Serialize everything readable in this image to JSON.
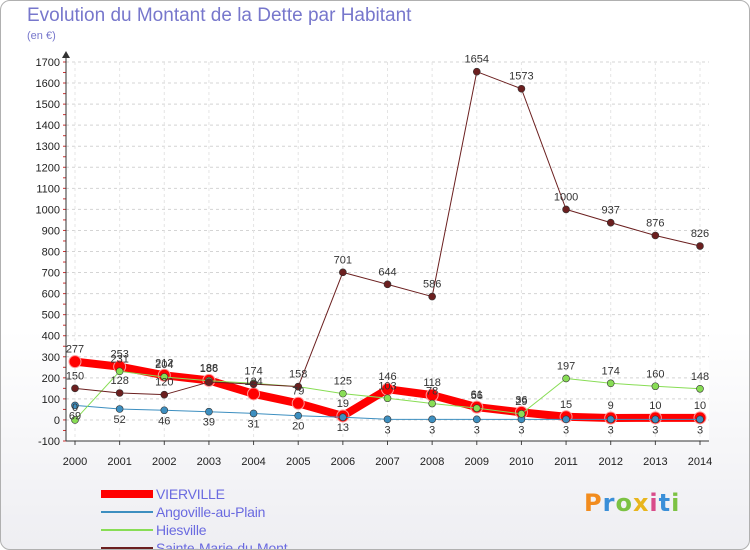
{
  "header": {
    "title": "Evolution du Montant de la Dette par Habitant",
    "unit": "(en €)"
  },
  "brand": {
    "logo": "Proxiti",
    "logo_colors": [
      "#f28c1e",
      "#3a8fd8",
      "#7cc243",
      "#e8b51d",
      "#d94c8a",
      "#3a8fd8",
      "#7cc243"
    ]
  },
  "chart_data": {
    "type": "line",
    "title": "Evolution du Montant de la Dette par Habitant",
    "ylabel": "(en €)",
    "xlabel": "",
    "x": [
      "2000",
      "2001",
      "2002",
      "2003",
      "2004",
      "2005",
      "2006",
      "2007",
      "2008",
      "2009",
      "2010",
      "2011",
      "2012",
      "2013",
      "2014"
    ],
    "ylim": [
      -100,
      1700
    ],
    "yticks": [
      -100,
      0,
      100,
      200,
      300,
      400,
      500,
      600,
      700,
      800,
      900,
      1000,
      1100,
      1200,
      1300,
      1400,
      1500,
      1600,
      1700
    ],
    "grid": true,
    "legend_position": "bottom-left",
    "series": [
      {
        "name": "VIERVILLE",
        "color": "#ff0000",
        "width": 8,
        "values": [
          277,
          253,
          212,
          188,
          124,
          79,
          19,
          146,
          118,
          61,
          36,
          15,
          9,
          10,
          10
        ],
        "labels": [
          "277",
          "253",
          "212",
          "188",
          "124",
          "79",
          "19",
          "146",
          "118",
          "61",
          "36",
          "15",
          "9",
          "10",
          "10"
        ]
      },
      {
        "name": "Angoville-au-Plain",
        "color": "#3d8fc0",
        "width": 1,
        "values": [
          69,
          52,
          46,
          39,
          31,
          20,
          13,
          3,
          3,
          3,
          3,
          3,
          3,
          3,
          3
        ],
        "labels": [
          "69",
          "52",
          "46",
          "39",
          "31",
          "20",
          "13",
          "3",
          "3",
          "3",
          "3",
          "3",
          "3",
          "3",
          "3"
        ]
      },
      {
        "name": "Hiesville",
        "color": "#88dd55",
        "width": 1,
        "values": [
          0,
          231,
          204,
          186,
          174,
          158,
          125,
          103,
          78,
          56,
          29,
          197,
          174,
          160,
          148
        ],
        "labels": [
          "0",
          "231",
          "204",
          "186",
          "174",
          "158",
          "125",
          "103",
          "78",
          "56",
          "29",
          "197",
          "174",
          "160",
          "148"
        ]
      },
      {
        "name": "Sainte-Marie-du-Mont",
        "color": "#6b1f1f",
        "width": 1,
        "values": [
          150,
          128,
          120,
          180,
          170,
          158,
          701,
          644,
          586,
          1654,
          1573,
          1000,
          937,
          876,
          826
        ],
        "labels": [
          "150",
          "128",
          "120",
          "",
          "",
          "",
          "701",
          "644",
          "586",
          "1654",
          "1573",
          "1000",
          "937",
          "876",
          "826"
        ]
      }
    ]
  }
}
